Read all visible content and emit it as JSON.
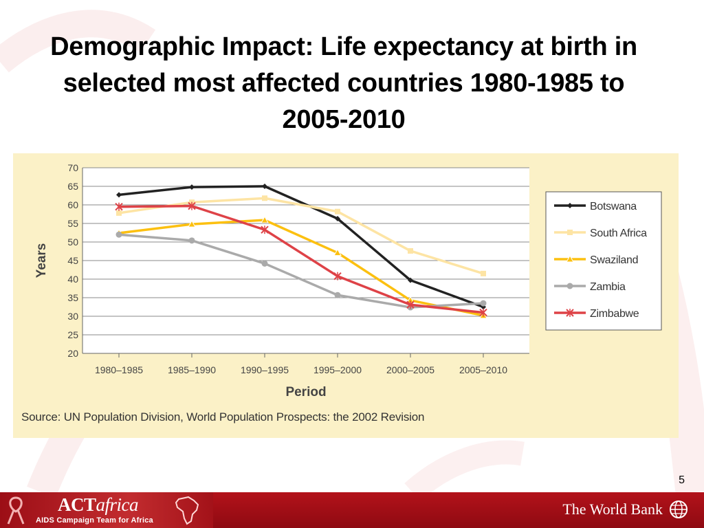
{
  "slide": {
    "title": "Demographic Impact: Life expectancy at birth in selected most affected countries 1980-1985 to 2005-2010",
    "source": "Source: UN Population Division, World Population Prospects: the 2002 Revision",
    "page_number": "5"
  },
  "footer": {
    "logo_prefix": "ACT",
    "logo_suffix": "africa",
    "logo_tagline": "AIDS Campaign Team for Africa",
    "bank_name": "The World Bank"
  },
  "colors": {
    "panel_bg": "#fbf1c7",
    "footer_red": "#b3121a"
  },
  "chart_data": {
    "type": "line",
    "title": "",
    "xlabel": "Period",
    "ylabel": "Years",
    "ylim": [
      20,
      70
    ],
    "yticks": [
      20,
      25,
      30,
      35,
      40,
      45,
      50,
      55,
      60,
      65,
      70
    ],
    "grid": true,
    "legend_position": "right",
    "categories": [
      "1980–1985",
      "1985–1990",
      "1990–1995",
      "1995–2000",
      "2000–2005",
      "2005–2010"
    ],
    "series": [
      {
        "name": "Botswana",
        "color": "#222222",
        "marker": "diamond",
        "values": [
          62.7,
          64.8,
          65.0,
          56.3,
          39.7,
          32.5
        ]
      },
      {
        "name": "South Africa",
        "color": "#fde4a4",
        "marker": "square",
        "values": [
          57.8,
          60.7,
          61.8,
          58.2,
          47.6,
          41.5
        ]
      },
      {
        "name": "Swaziland",
        "color": "#fcc010",
        "marker": "triangle",
        "values": [
          52.4,
          54.8,
          55.9,
          47.1,
          34.3,
          30.2
        ]
      },
      {
        "name": "Zambia",
        "color": "#aaaaaa",
        "marker": "circle",
        "values": [
          52.0,
          50.4,
          44.2,
          35.7,
          32.4,
          33.5
        ]
      },
      {
        "name": "Zimbabwe",
        "color": "#de4247",
        "marker": "x",
        "values": [
          59.5,
          59.7,
          53.3,
          40.8,
          33.1,
          31.0
        ]
      }
    ]
  }
}
